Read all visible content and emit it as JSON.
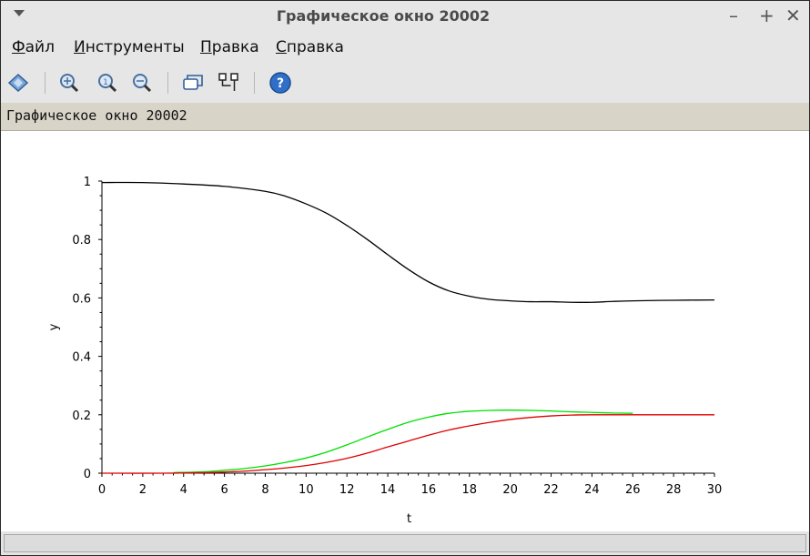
{
  "window": {
    "title": "Графическое окно 20002",
    "controls": [
      "–",
      "+",
      "✕"
    ]
  },
  "menu": [
    {
      "accel": "Ф",
      "rest": "айл"
    },
    {
      "accel": "И",
      "rest": "нструменты"
    },
    {
      "accel": "П",
      "rest": "равка"
    },
    {
      "accel": "С",
      "rest": "правка"
    }
  ],
  "toolbar": {
    "icons": [
      "rotate-icon",
      "zoom-in-icon",
      "zoom-original-icon",
      "zoom-out-icon",
      "datatip-icon",
      "datatip-edit-icon",
      "help-icon"
    ]
  },
  "info_bar": {
    "text": "Графическое окно 20002"
  },
  "chart_data": {
    "type": "line",
    "xlabel": "t",
    "ylabel": "y",
    "xlim": [
      0,
      30
    ],
    "ylim": [
      0,
      1
    ],
    "xticks": [
      0,
      2,
      4,
      6,
      8,
      10,
      12,
      14,
      16,
      18,
      20,
      22,
      24,
      26,
      28,
      30
    ],
    "yticks": [
      0,
      0.2,
      0.4,
      0.6,
      0.8,
      1
    ],
    "ytick_labels": [
      "0",
      "0.2",
      "0.4",
      "0.6",
      "0.8",
      "1"
    ],
    "series": [
      {
        "color": "#000000",
        "x": [
          0,
          2,
          4,
          6,
          8,
          9,
          10,
          11,
          12,
          13,
          14,
          15,
          16,
          17,
          18,
          19,
          20,
          21,
          22,
          23,
          24,
          25,
          26,
          28,
          30
        ],
        "y": [
          0.995,
          0.995,
          0.99,
          0.982,
          0.965,
          0.948,
          0.922,
          0.89,
          0.848,
          0.8,
          0.748,
          0.698,
          0.655,
          0.624,
          0.606,
          0.595,
          0.59,
          0.587,
          0.587,
          0.585,
          0.585,
          0.588,
          0.59,
          0.592,
          0.593
        ]
      },
      {
        "color": "#00e000",
        "x": [
          3.5,
          5,
          6,
          7,
          8,
          9,
          10,
          11,
          12,
          13,
          14,
          15,
          16,
          17,
          18,
          19,
          20,
          21,
          22,
          23,
          24,
          25,
          26
        ],
        "y": [
          0.002,
          0.005,
          0.01,
          0.016,
          0.025,
          0.037,
          0.052,
          0.072,
          0.097,
          0.124,
          0.15,
          0.174,
          0.192,
          0.205,
          0.212,
          0.215,
          0.216,
          0.215,
          0.213,
          0.21,
          0.208,
          0.206,
          0.205
        ]
      },
      {
        "color": "#e00000",
        "x": [
          0,
          3,
          5,
          6,
          7,
          8,
          9,
          10,
          11,
          12,
          13,
          14,
          15,
          16,
          17,
          18,
          19,
          20,
          21,
          22,
          23,
          24,
          26,
          28,
          30
        ],
        "y": [
          0,
          0,
          0.002,
          0.004,
          0.007,
          0.012,
          0.018,
          0.026,
          0.037,
          0.051,
          0.069,
          0.09,
          0.11,
          0.13,
          0.148,
          0.162,
          0.174,
          0.184,
          0.191,
          0.196,
          0.199,
          0.2,
          0.2,
          0.2,
          0.2
        ]
      }
    ]
  }
}
